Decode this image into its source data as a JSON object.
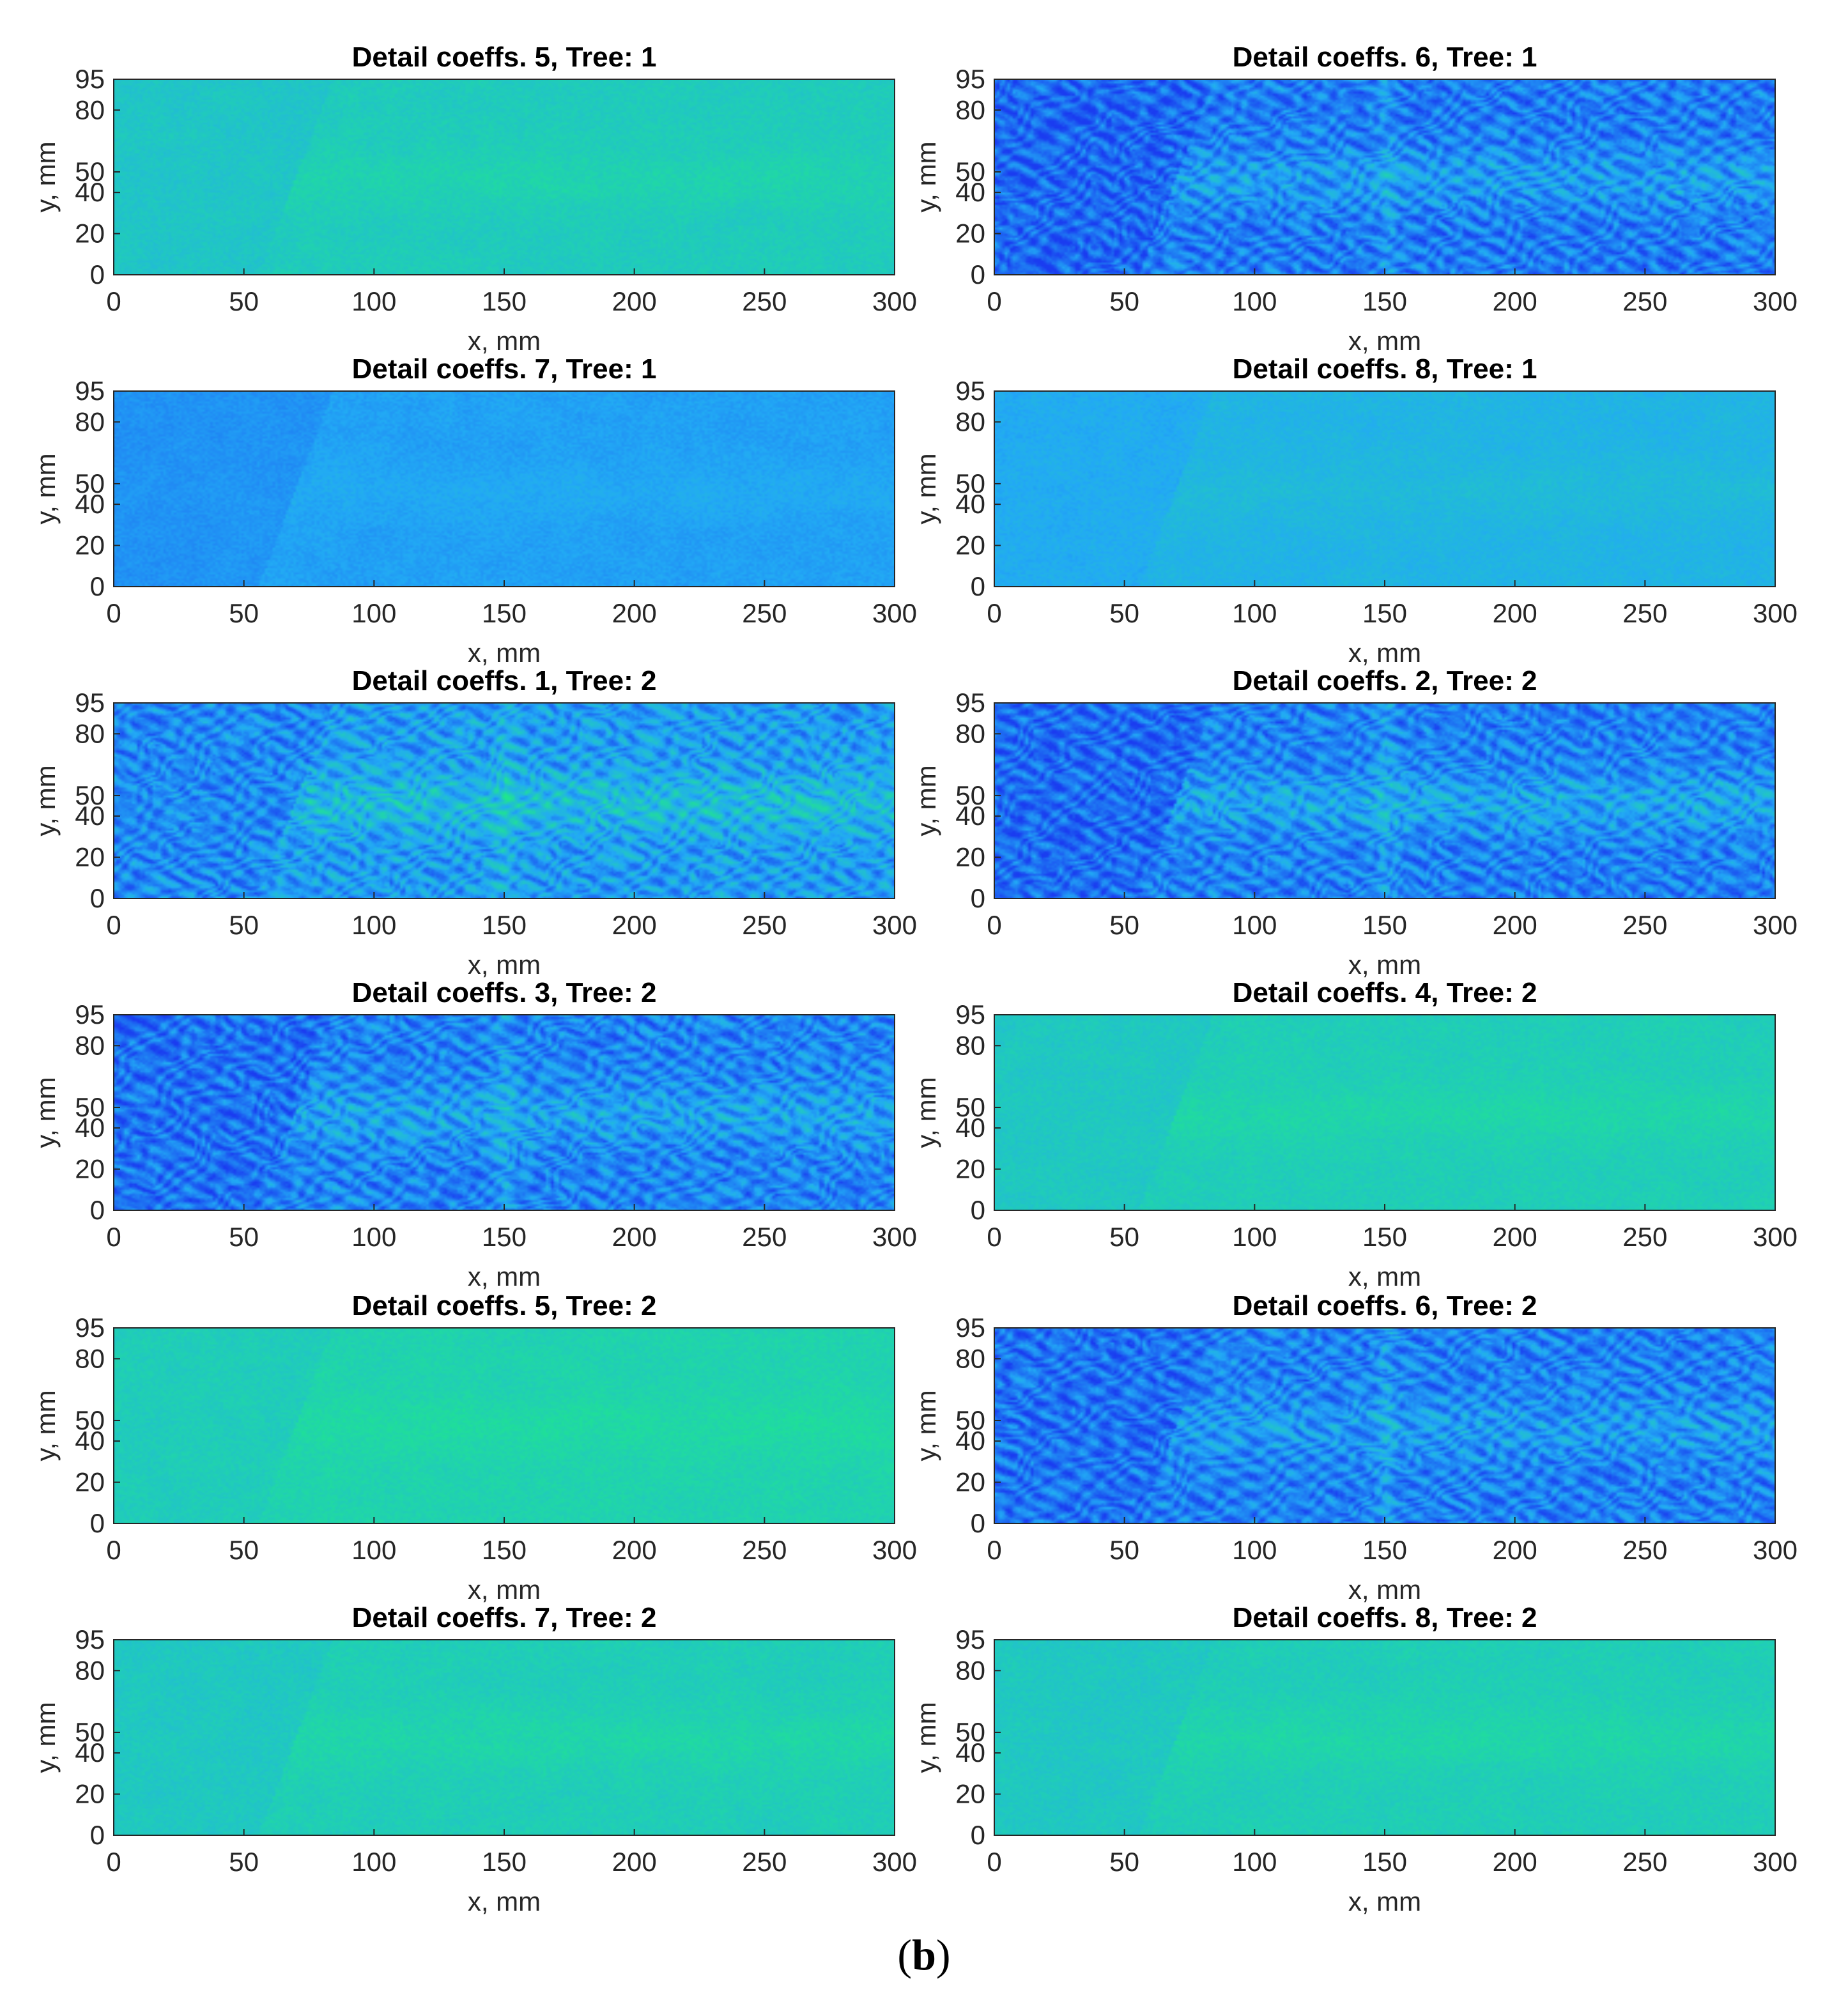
{
  "figure": {
    "caption_open": "(",
    "caption_letter": "b",
    "caption_close": ")"
  },
  "colors": {
    "low": "#1a3cf0",
    "mid": "#22aaf5",
    "high": "#1fe88a",
    "frame": "#262626"
  },
  "chart_data": [
    {
      "type": "heatmap",
      "title": "Detail coeffs. 5, Tree: 1",
      "xlabel": "x, mm",
      "ylabel": "y, mm",
      "xlim": [
        0,
        300
      ],
      "ylim": [
        0,
        95
      ],
      "xticks": [
        0,
        50,
        100,
        150,
        200,
        250,
        300
      ],
      "yticks": [
        0,
        20,
        40,
        50,
        80,
        95
      ],
      "texture": "fine",
      "base_level": 0.72,
      "mid_level": 0.8,
      "defect_boost": 0.06
    },
    {
      "type": "heatmap",
      "title": "Detail coeffs. 6, Tree: 1",
      "xlabel": "x, mm",
      "ylabel": "y, mm",
      "xlim": [
        0,
        300
      ],
      "ylim": [
        0,
        95
      ],
      "xticks": [
        0,
        50,
        100,
        150,
        200,
        250,
        300
      ],
      "yticks": [
        0,
        20,
        40,
        50,
        80,
        95
      ],
      "texture": "cells",
      "base_level": 0.2,
      "mid_level": 0.35,
      "defect_boost": 0.15
    },
    {
      "type": "heatmap",
      "title": "Detail coeffs. 7, Tree: 1",
      "xlabel": "x, mm",
      "ylabel": "y, mm",
      "xlim": [
        0,
        300
      ],
      "ylim": [
        0,
        95
      ],
      "xticks": [
        0,
        50,
        100,
        150,
        200,
        250,
        300
      ],
      "yticks": [
        0,
        20,
        40,
        50,
        80,
        95
      ],
      "texture": "fine",
      "base_level": 0.4,
      "mid_level": 0.5,
      "defect_boost": 0.04
    },
    {
      "type": "heatmap",
      "title": "Detail coeffs. 8, Tree: 1",
      "xlabel": "x, mm",
      "ylabel": "y, mm",
      "xlim": [
        0,
        300
      ],
      "ylim": [
        0,
        95
      ],
      "xticks": [
        0,
        50,
        100,
        150,
        200,
        250,
        300
      ],
      "yticks": [
        0,
        20,
        40,
        50,
        80,
        95
      ],
      "texture": "fine",
      "base_level": 0.52,
      "mid_level": 0.62,
      "defect_boost": 0.05
    },
    {
      "type": "heatmap",
      "title": "Detail coeffs. 1, Tree: 2",
      "xlabel": "x, mm",
      "ylabel": "y, mm",
      "xlim": [
        0,
        300
      ],
      "ylim": [
        0,
        95
      ],
      "xticks": [
        0,
        50,
        100,
        150,
        200,
        250,
        300
      ],
      "yticks": [
        0,
        20,
        40,
        50,
        80,
        95
      ],
      "texture": "cells",
      "base_level": 0.35,
      "mid_level": 0.5,
      "defect_boost": 0.2
    },
    {
      "type": "heatmap",
      "title": "Detail coeffs. 2, Tree: 2",
      "xlabel": "x, mm",
      "ylabel": "y, mm",
      "xlim": [
        0,
        300
      ],
      "ylim": [
        0,
        95
      ],
      "xticks": [
        0,
        50,
        100,
        150,
        200,
        250,
        300
      ],
      "yticks": [
        0,
        20,
        40,
        50,
        80,
        95
      ],
      "texture": "cells",
      "base_level": 0.22,
      "mid_level": 0.38,
      "defect_boost": 0.18
    },
    {
      "type": "heatmap",
      "title": "Detail coeffs. 3, Tree: 2",
      "xlabel": "x, mm",
      "ylabel": "y, mm",
      "xlim": [
        0,
        300
      ],
      "ylim": [
        0,
        95
      ],
      "xticks": [
        0,
        50,
        100,
        150,
        200,
        250,
        300
      ],
      "yticks": [
        0,
        20,
        40,
        50,
        80,
        95
      ],
      "texture": "cells",
      "base_level": 0.25,
      "mid_level": 0.38,
      "defect_boost": 0.15
    },
    {
      "type": "heatmap",
      "title": "Detail coeffs. 4, Tree: 2",
      "xlabel": "x, mm",
      "ylabel": "y, mm",
      "xlim": [
        0,
        300
      ],
      "ylim": [
        0,
        95
      ],
      "xticks": [
        0,
        50,
        100,
        150,
        200,
        250,
        300
      ],
      "yticks": [
        0,
        20,
        40,
        50,
        80,
        95
      ],
      "texture": "fine",
      "base_level": 0.74,
      "mid_level": 0.82,
      "defect_boost": 0.06
    },
    {
      "type": "heatmap",
      "title": "Detail coeffs. 5, Tree: 2",
      "xlabel": "x, mm",
      "ylabel": "y, mm",
      "xlim": [
        0,
        300
      ],
      "ylim": [
        0,
        95
      ],
      "xticks": [
        0,
        50,
        100,
        150,
        200,
        250,
        300
      ],
      "yticks": [
        0,
        20,
        40,
        50,
        80,
        95
      ],
      "texture": "fine",
      "base_level": 0.78,
      "mid_level": 0.86,
      "defect_boost": 0.05
    },
    {
      "type": "heatmap",
      "title": "Detail coeffs. 6, Tree: 2",
      "xlabel": "x, mm",
      "ylabel": "y, mm",
      "xlim": [
        0,
        300
      ],
      "ylim": [
        0,
        95
      ],
      "xticks": [
        0,
        50,
        100,
        150,
        200,
        250,
        300
      ],
      "yticks": [
        0,
        20,
        40,
        50,
        80,
        95
      ],
      "texture": "cells",
      "base_level": 0.25,
      "mid_level": 0.36,
      "defect_boost": 0.12
    },
    {
      "type": "heatmap",
      "title": "Detail coeffs. 7, Tree: 2",
      "xlabel": "x, mm",
      "ylabel": "y, mm",
      "xlim": [
        0,
        300
      ],
      "ylim": [
        0,
        95
      ],
      "xticks": [
        0,
        50,
        100,
        150,
        200,
        250,
        300
      ],
      "yticks": [
        0,
        20,
        40,
        50,
        80,
        95
      ],
      "texture": "fine",
      "base_level": 0.74,
      "mid_level": 0.82,
      "defect_boost": 0.06
    },
    {
      "type": "heatmap",
      "title": "Detail coeffs. 8, Tree: 2",
      "xlabel": "x, mm",
      "ylabel": "y, mm",
      "xlim": [
        0,
        300
      ],
      "ylim": [
        0,
        95
      ],
      "xticks": [
        0,
        50,
        100,
        150,
        200,
        250,
        300
      ],
      "yticks": [
        0,
        20,
        40,
        50,
        80,
        95
      ],
      "texture": "fine",
      "base_level": 0.74,
      "mid_level": 0.82,
      "defect_boost": 0.06
    }
  ]
}
